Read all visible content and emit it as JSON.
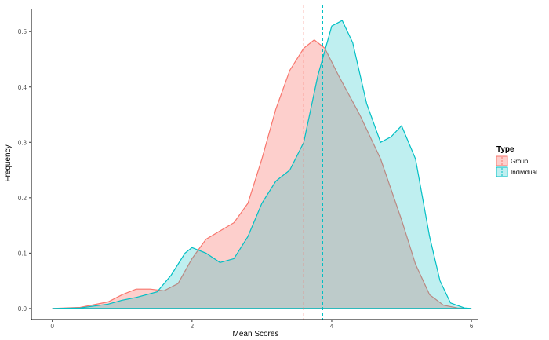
{
  "chart_data": {
    "type": "area",
    "xlabel": "Mean Scores",
    "ylabel": "Frequency",
    "xlim": [
      -0.3,
      6.1
    ],
    "ylim": [
      -0.02,
      0.54
    ],
    "x_ticks": [
      0,
      2,
      4,
      6
    ],
    "y_ticks": [
      0.0,
      0.1,
      0.2,
      0.3,
      0.4,
      0.5
    ],
    "x_tick_labels": [
      "0",
      "2",
      "4",
      "6"
    ],
    "y_tick_labels": [
      "0.0",
      "0.1",
      "0.2",
      "0.3",
      "0.4",
      "0.5"
    ],
    "grid": false,
    "legend": {
      "title": "Type",
      "placement": "right"
    },
    "series": [
      {
        "name": "Group",
        "color": "#F8766D",
        "fill": "rgba(248,118,109,0.35)",
        "mean": 3.6,
        "points": [
          [
            0,
            0
          ],
          [
            0.4,
            0.002
          ],
          [
            0.8,
            0.012
          ],
          [
            1.0,
            0.025
          ],
          [
            1.2,
            0.035
          ],
          [
            1.4,
            0.035
          ],
          [
            1.6,
            0.032
          ],
          [
            1.8,
            0.045
          ],
          [
            2.0,
            0.09
          ],
          [
            2.2,
            0.125
          ],
          [
            2.4,
            0.14
          ],
          [
            2.6,
            0.155
          ],
          [
            2.8,
            0.19
          ],
          [
            3.0,
            0.27
          ],
          [
            3.2,
            0.36
          ],
          [
            3.4,
            0.43
          ],
          [
            3.6,
            0.47
          ],
          [
            3.75,
            0.485
          ],
          [
            3.9,
            0.47
          ],
          [
            4.1,
            0.42
          ],
          [
            4.4,
            0.35
          ],
          [
            4.7,
            0.27
          ],
          [
            5.0,
            0.16
          ],
          [
            5.2,
            0.08
          ],
          [
            5.4,
            0.025
          ],
          [
            5.6,
            0.006
          ],
          [
            5.8,
            0.001
          ],
          [
            6.0,
            0
          ]
        ]
      },
      {
        "name": "Individual",
        "color": "#00BFC4",
        "fill": "rgba(0,191,196,0.25)",
        "mean": 3.87,
        "points": [
          [
            0,
            0
          ],
          [
            0.4,
            0.001
          ],
          [
            0.8,
            0.008
          ],
          [
            1.0,
            0.015
          ],
          [
            1.2,
            0.02
          ],
          [
            1.5,
            0.03
          ],
          [
            1.7,
            0.06
          ],
          [
            1.9,
            0.1
          ],
          [
            2.0,
            0.11
          ],
          [
            2.2,
            0.1
          ],
          [
            2.4,
            0.083
          ],
          [
            2.6,
            0.09
          ],
          [
            2.8,
            0.13
          ],
          [
            3.0,
            0.19
          ],
          [
            3.2,
            0.23
          ],
          [
            3.4,
            0.25
          ],
          [
            3.6,
            0.3
          ],
          [
            3.8,
            0.42
          ],
          [
            4.0,
            0.51
          ],
          [
            4.15,
            0.52
          ],
          [
            4.3,
            0.48
          ],
          [
            4.5,
            0.37
          ],
          [
            4.7,
            0.3
          ],
          [
            4.85,
            0.31
          ],
          [
            5.0,
            0.33
          ],
          [
            5.2,
            0.27
          ],
          [
            5.4,
            0.13
          ],
          [
            5.55,
            0.05
          ],
          [
            5.7,
            0.01
          ],
          [
            5.9,
            0.001
          ],
          [
            6.0,
            0
          ]
        ]
      }
    ]
  }
}
